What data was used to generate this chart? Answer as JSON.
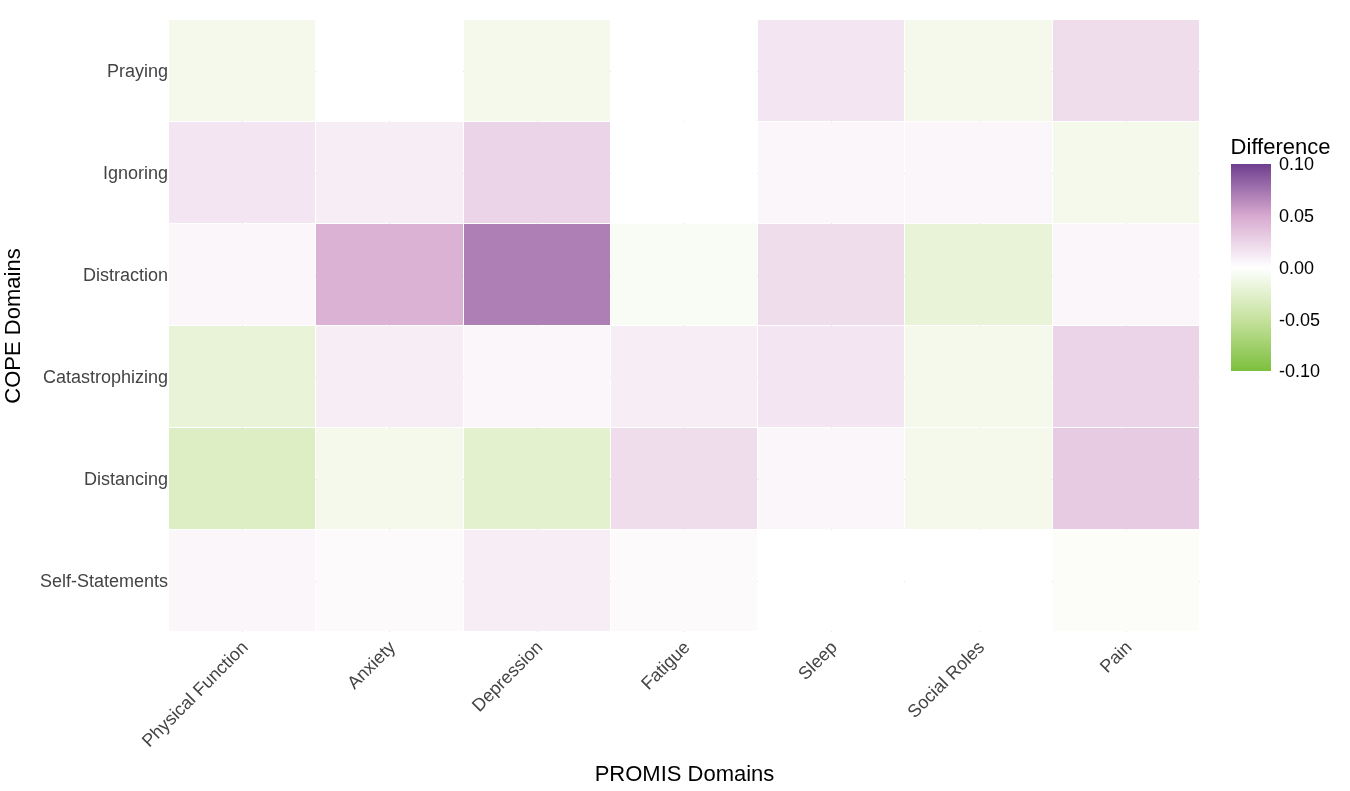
{
  "chart_data": {
    "type": "heatmap",
    "xlabel": "PROMIS Domains",
    "ylabel": "COPE Domains",
    "clabel": "Difference",
    "categories": [
      "Physical Function",
      "Anxiety",
      "Depression",
      "Fatigue",
      "Sleep",
      "Social Roles",
      "Pain"
    ],
    "y_categories": [
      "Praying",
      "Ignoring",
      "Distraction",
      "Catastrophizing",
      "Distancing",
      "Self-Statements"
    ],
    "cells": [
      [
        -0.01,
        0.0,
        -0.01,
        0.0,
        0.015,
        -0.01,
        0.02
      ],
      [
        0.015,
        0.01,
        0.025,
        0.0,
        0.005,
        0.005,
        -0.01
      ],
      [
        0.005,
        0.045,
        0.07,
        -0.005,
        0.02,
        -0.02,
        0.005
      ],
      [
        -0.02,
        0.01,
        0.005,
        0.01,
        0.015,
        -0.01,
        0.025
      ],
      [
        -0.03,
        -0.01,
        -0.025,
        0.02,
        0.005,
        -0.01,
        0.03
      ],
      [
        0.005,
        0.003,
        0.01,
        0.003,
        0.0,
        0.0,
        -0.003
      ]
    ],
    "clim": [
      -0.1,
      0.1
    ],
    "cticks": [
      {
        "value": 0.1,
        "label": "0.10"
      },
      {
        "value": 0.05,
        "label": "0.05"
      },
      {
        "value": 0,
        "label": "0.00"
      },
      {
        "value": -0.05,
        "label": "-0.05"
      },
      {
        "value": -0.1,
        "label": "-0.10"
      }
    ],
    "grid": true
  }
}
